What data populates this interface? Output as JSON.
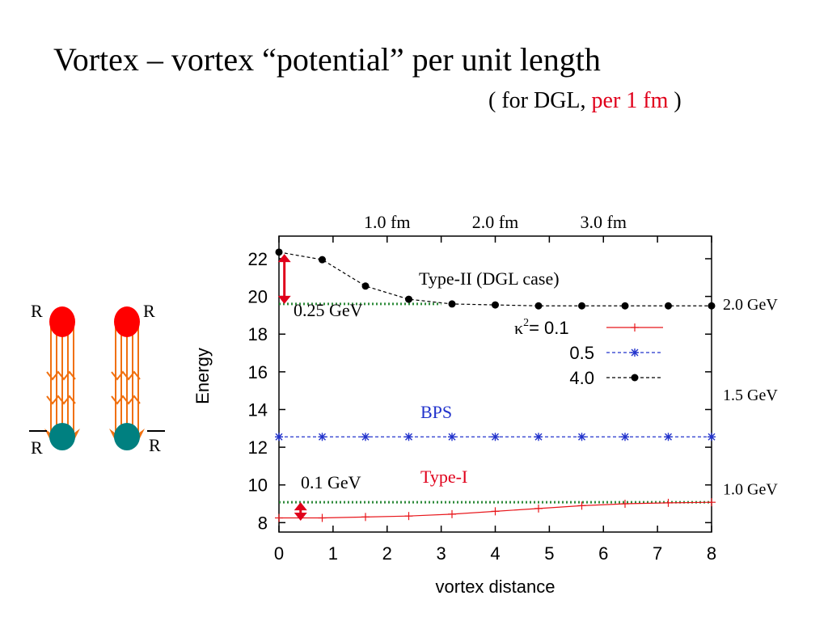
{
  "slide": {
    "title": "Vortex – vortex “potential” per unit length",
    "subtitle_prefix": "( for DGL, ",
    "subtitle_accent": "per 1 fm",
    "subtitle_suffix": " )"
  },
  "illustration": {
    "left_top_label": "R",
    "left_bottom_label": "R",
    "right_top_label": "R",
    "right_bottom_label": "R",
    "colors": {
      "charge": "#ff0000",
      "anticharge": "#008080",
      "flux": "#f07010"
    }
  },
  "chart_data": {
    "type": "line",
    "xlabel": "vortex distance",
    "ylabel": "Energy",
    "xlim": [
      0,
      8
    ],
    "ylim": [
      7.5,
      23.2
    ],
    "x_ticks": [
      "0",
      "1",
      "2",
      "3",
      "4",
      "5",
      "6",
      "7",
      "8"
    ],
    "y_ticks": [
      "8",
      "10",
      "12",
      "14",
      "16",
      "18",
      "20",
      "22"
    ],
    "top_axis_labels": [
      {
        "text": "1.0 fm",
        "x": 2.0
      },
      {
        "text": "2.0 fm",
        "x": 4.0
      },
      {
        "text": "3.0 fm",
        "x": 6.0
      }
    ],
    "right_axis_labels": [
      {
        "text": "2.0 GeV",
        "y": 19.6
      },
      {
        "text": "1.5 GeV",
        "y": 14.8
      },
      {
        "text": "1.0 GeV",
        "y": 9.8
      }
    ],
    "legend_title": "κ",
    "legend_title_sup": "2",
    "legend_title_eq": "= 0.1",
    "series": [
      {
        "name": "0.1",
        "color": "#e8161b",
        "marker": "plus",
        "style": "solid",
        "x": [
          0,
          0.8,
          1.6,
          2.4,
          3.2,
          4.0,
          4.8,
          5.6,
          6.4,
          7.2,
          8.0
        ],
        "y": [
          8.25,
          8.25,
          8.3,
          8.35,
          8.45,
          8.6,
          8.75,
          8.9,
          9.0,
          9.05,
          9.08
        ]
      },
      {
        "name": "0.5",
        "color": "#2233cc",
        "marker": "star",
        "style": "dashed",
        "x": [
          0,
          0.8,
          1.6,
          2.4,
          3.2,
          4.0,
          4.8,
          5.6,
          6.4,
          7.2,
          8.0
        ],
        "y": [
          12.55,
          12.55,
          12.55,
          12.55,
          12.55,
          12.55,
          12.55,
          12.55,
          12.55,
          12.55,
          12.55
        ]
      },
      {
        "name": "4.0",
        "color": "#000000",
        "marker": "dot",
        "style": "dashed",
        "x": [
          0,
          0.8,
          1.6,
          2.4,
          3.2,
          4.0,
          4.8,
          5.6,
          6.4,
          7.2,
          8.0
        ],
        "y": [
          22.35,
          21.95,
          20.55,
          19.85,
          19.6,
          19.55,
          19.5,
          19.5,
          19.5,
          19.5,
          19.5
        ]
      }
    ],
    "reference_lines": [
      {
        "y": 19.6,
        "color": "#2e8b3a",
        "style": "dotted",
        "x_to": 3.0
      },
      {
        "y": 9.08,
        "color": "#2e8b3a",
        "style": "dotted",
        "x_to": 8.0
      }
    ],
    "gap_markers": [
      {
        "x": 0.1,
        "y_from": 22.25,
        "y_to": 19.6,
        "color": "#e0001b"
      },
      {
        "x": 0.4,
        "y_from": 9.08,
        "y_to": 8.1,
        "color": "#e0001b"
      }
    ],
    "annotations": [
      {
        "text": "Type-II  (DGL case)",
        "color": "#000000"
      },
      {
        "text": "0.25 GeV",
        "color": "#000000"
      },
      {
        "text": "BPS",
        "color": "#2233cc"
      },
      {
        "text": "Type-I",
        "color": "#e0001b"
      },
      {
        "text": "0.1 GeV",
        "color": "#000000"
      }
    ]
  }
}
